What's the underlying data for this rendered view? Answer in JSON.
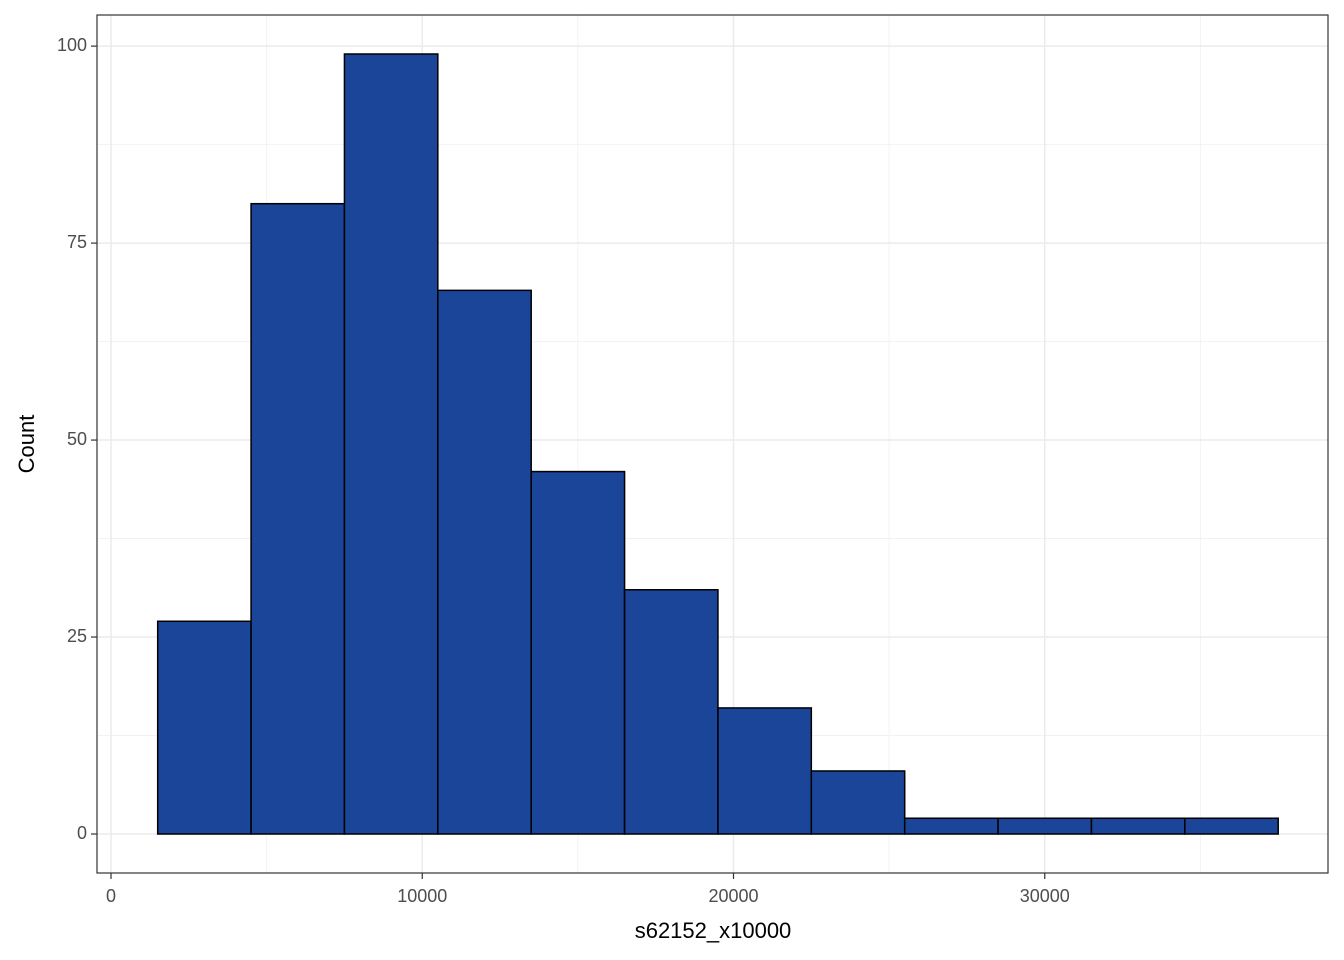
{
  "chart_data": {
    "type": "histogram",
    "x_label": "s62152_x10000",
    "y_label": "Count",
    "bins": [
      1500,
      4500,
      7500,
      10500,
      13500,
      16500,
      19500,
      22500,
      25500,
      28500,
      31500,
      34500,
      37500
    ],
    "values": [
      27,
      80,
      99,
      69,
      46,
      31,
      16,
      8,
      2,
      2,
      2,
      2
    ],
    "color": "#1a4599",
    "edge_color": "#000000",
    "xlim": [
      -450,
      39100
    ],
    "ylim": [
      -4.95,
      103.95
    ],
    "xticks": [
      0,
      10000,
      20000,
      30000
    ],
    "yticks": [
      0,
      25,
      50,
      75,
      100
    ],
    "x_minor_ticks": [
      5000,
      15000,
      25000,
      35000
    ],
    "y_minor_ticks": [
      12.5,
      37.5,
      62.5,
      87.5
    ],
    "grid": true
  }
}
